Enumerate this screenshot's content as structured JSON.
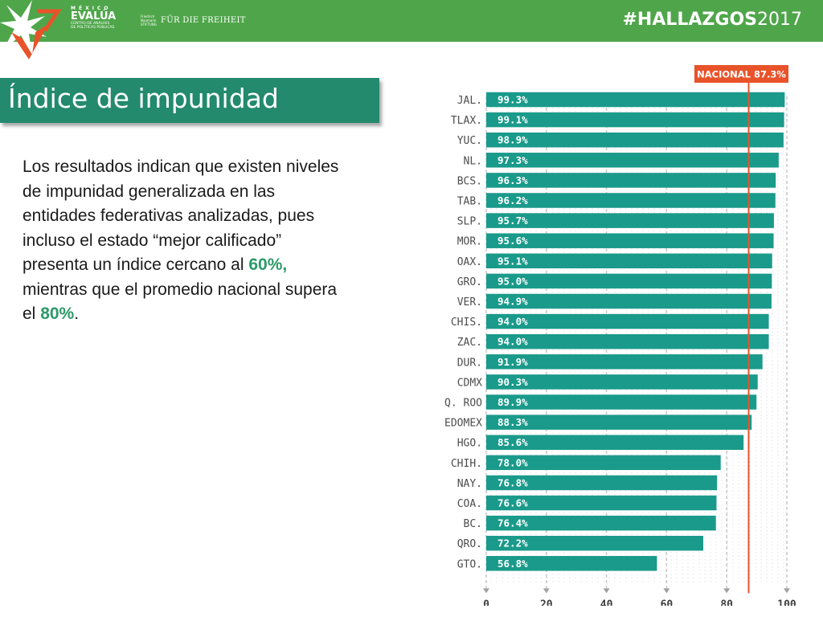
{
  "header": {
    "brand_line1": "MÉXICO",
    "brand_line2": "EVALÚA",
    "brand_line3": "CENTRO DE ANÁLISIS",
    "brand_line4": "DE POLÍTICAS PÚBLICAS",
    "partner_small": "Friedrich Naumann STIFTUNG",
    "partner_main": "FÜR DIE FREIHEIT",
    "hashtag_bold": "#HALLAZGOS",
    "hashtag_year": "2017",
    "bg_color": "#4fa64a",
    "accent_color": "#e8532a"
  },
  "slide": {
    "title": "Índice de impunidad",
    "body_1": "Los resultados indican que existen niveles de impunidad generalizada en las entidades federativas analizadas, pues incluso el estado “mejor calificado” presenta un índice cercano al ",
    "body_hl1": "60%,",
    "body_2": " mientras que el promedio nacional supera el ",
    "body_hl2": "80%",
    "body_3": "."
  },
  "chart_data": {
    "type": "bar",
    "orientation": "horizontal",
    "categories": [
      "JAL.",
      "TLAX.",
      "YUC.",
      "NL.",
      "BCS.",
      "TAB.",
      "SLP.",
      "MOR.",
      "OAX.",
      "GRO.",
      "VER.",
      "CHIS.",
      "ZAC.",
      "DUR.",
      "CDMX",
      "Q. ROO",
      "EDOMEX",
      "HGO.",
      "CHIH.",
      "NAY.",
      "COA.",
      "BC.",
      "QRO.",
      "GTO."
    ],
    "values": [
      99.3,
      99.1,
      98.9,
      97.3,
      96.3,
      96.2,
      95.7,
      95.6,
      95.1,
      95.0,
      94.9,
      94.0,
      94.0,
      91.9,
      90.3,
      89.9,
      88.3,
      85.6,
      78.0,
      76.8,
      76.6,
      76.4,
      72.2,
      56.8
    ],
    "labels": [
      "99.3%",
      "99.1%",
      "98.9%",
      "97.3%",
      "96.3%",
      "96.2%",
      "95.7%",
      "95.6%",
      "95.1%",
      "95.0%",
      "94.9%",
      "94.0%",
      "94.0%",
      "91.9%",
      "90.3%",
      "89.9%",
      "88.3%",
      "85.6%",
      "78.0%",
      "76.8%",
      "76.6%",
      "76.4%",
      "72.2%",
      "56.8%"
    ],
    "xlim": [
      0,
      100
    ],
    "xticks": [
      0,
      20,
      40,
      60,
      80,
      100
    ],
    "reference": {
      "label": "NACIONAL 87.3%",
      "value": 87.3
    },
    "bar_color": "#1a9a8a",
    "reference_color": "#e8532a",
    "grid": true
  }
}
